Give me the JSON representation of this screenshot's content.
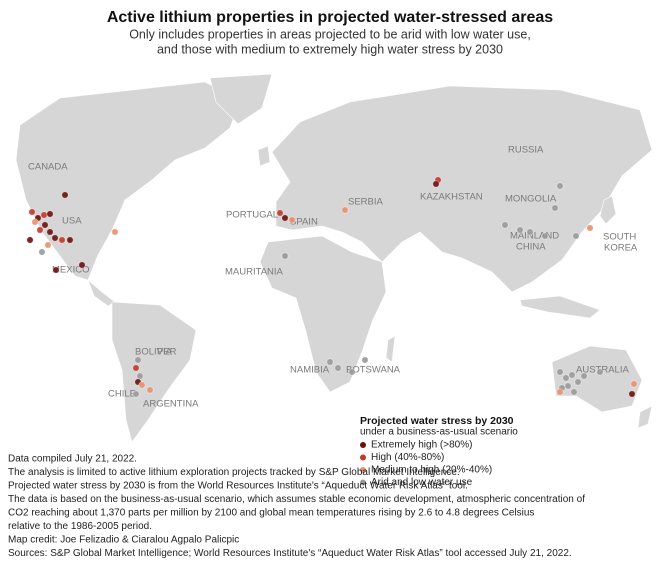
{
  "title": "Active lithium properties in projected water-stressed areas",
  "subtitle": [
    "Only includes properties in areas projected to be arid with low water use,",
    "and those with medium to extremely high water stress by 2030"
  ],
  "countries": [
    "CANADA",
    "USA",
    "MEXICO",
    "PORTUGAL",
    "SPAIN",
    "SERBIA",
    "KAZAKHSTAN",
    "RUSSIA",
    "MONGOLIA",
    "MAINLAND",
    "CHINA",
    "SOUTH",
    "KOREA",
    "MAURITANIA",
    "BOLIVIA",
    "PER",
    "CHILE",
    "ARGENTINA",
    "NAMIBIA",
    "BOTSWANA",
    "AUSTRALIA"
  ],
  "legend": {
    "title": "Projected water stress by 2030",
    "subtitle": "under a business-as-usual scenario",
    "items": [
      {
        "name": "Extremely high (>80%)",
        "color": "#6e1010"
      },
      {
        "name": "High (40%-80%)",
        "color": "#c0392b"
      },
      {
        "name": "Medium to high (20%-40%)",
        "color": "#e89070"
      },
      {
        "name": "Arid and low water use",
        "color": "#9a9a9a"
      }
    ]
  },
  "notes": [
    "Data compiled July 21, 2022.",
    "The analysis is limited to active lithium exploration projects tracked by S&P Global Market Intelligence.",
    "Projected water stress by 2030 is from the World Resources Institute's “Aqueduct Water Risk Atlas” tool.",
    "The data is based on the business-as-usual scenario, which assumes stable economic development, atmospheric concentration of",
    "CO2 reaching about 1,370 parts per million by 2100 and global mean temperatures rising by 2.6 to 4.8 degrees Celsius",
    "relative to the 1986-2005 period.",
    "Map credit: Joe Felizadio & Ciaralou Agpalo Palicpic",
    "Sources: S&P Global Market Intelligence; World Resources Institute's “Aqueduct Water Risk Atlas” tool accessed July 21, 2022."
  ]
}
